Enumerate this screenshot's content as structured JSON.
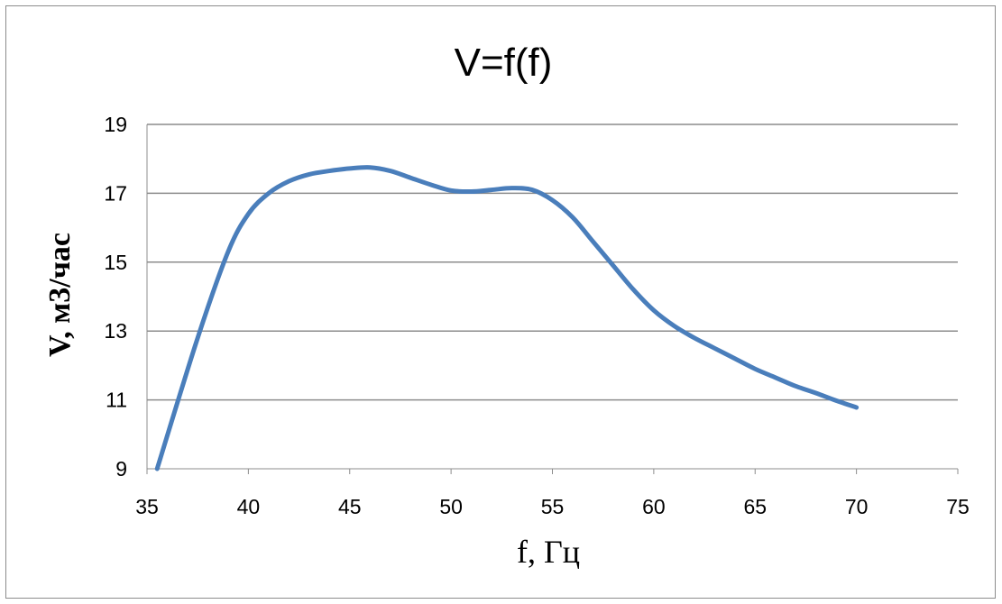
{
  "chart_data": {
    "type": "line",
    "title": "V=f(f)",
    "xlabel": "f, Гц",
    "ylabel": "V, м3/час",
    "xlim": [
      35,
      75
    ],
    "ylim": [
      9,
      19
    ],
    "x_ticks": [
      "35",
      "40",
      "45",
      "50",
      "55",
      "60",
      "65",
      "70",
      "75"
    ],
    "y_ticks": [
      "9",
      "11",
      "13",
      "15",
      "17",
      "19"
    ],
    "grid": "horizontal",
    "legend": "none",
    "series_color": "#4a7ebb",
    "series": [
      {
        "x": [
          35.5,
          37.5,
          39,
          40,
          41,
          42,
          43,
          44,
          45,
          46,
          47,
          48,
          49,
          50,
          51,
          52,
          53,
          54,
          55,
          56,
          57,
          58,
          59,
          60,
          61,
          62,
          63,
          64,
          65,
          66,
          67,
          68,
          69,
          70
        ],
        "values": [
          9.0,
          12.8,
          15.3,
          16.4,
          17.0,
          17.35,
          17.55,
          17.65,
          17.72,
          17.75,
          17.65,
          17.45,
          17.25,
          17.08,
          17.05,
          17.1,
          17.15,
          17.1,
          16.8,
          16.3,
          15.6,
          14.9,
          14.2,
          13.6,
          13.15,
          12.8,
          12.5,
          12.2,
          11.9,
          11.65,
          11.4,
          11.2,
          10.98,
          10.78
        ]
      }
    ]
  }
}
